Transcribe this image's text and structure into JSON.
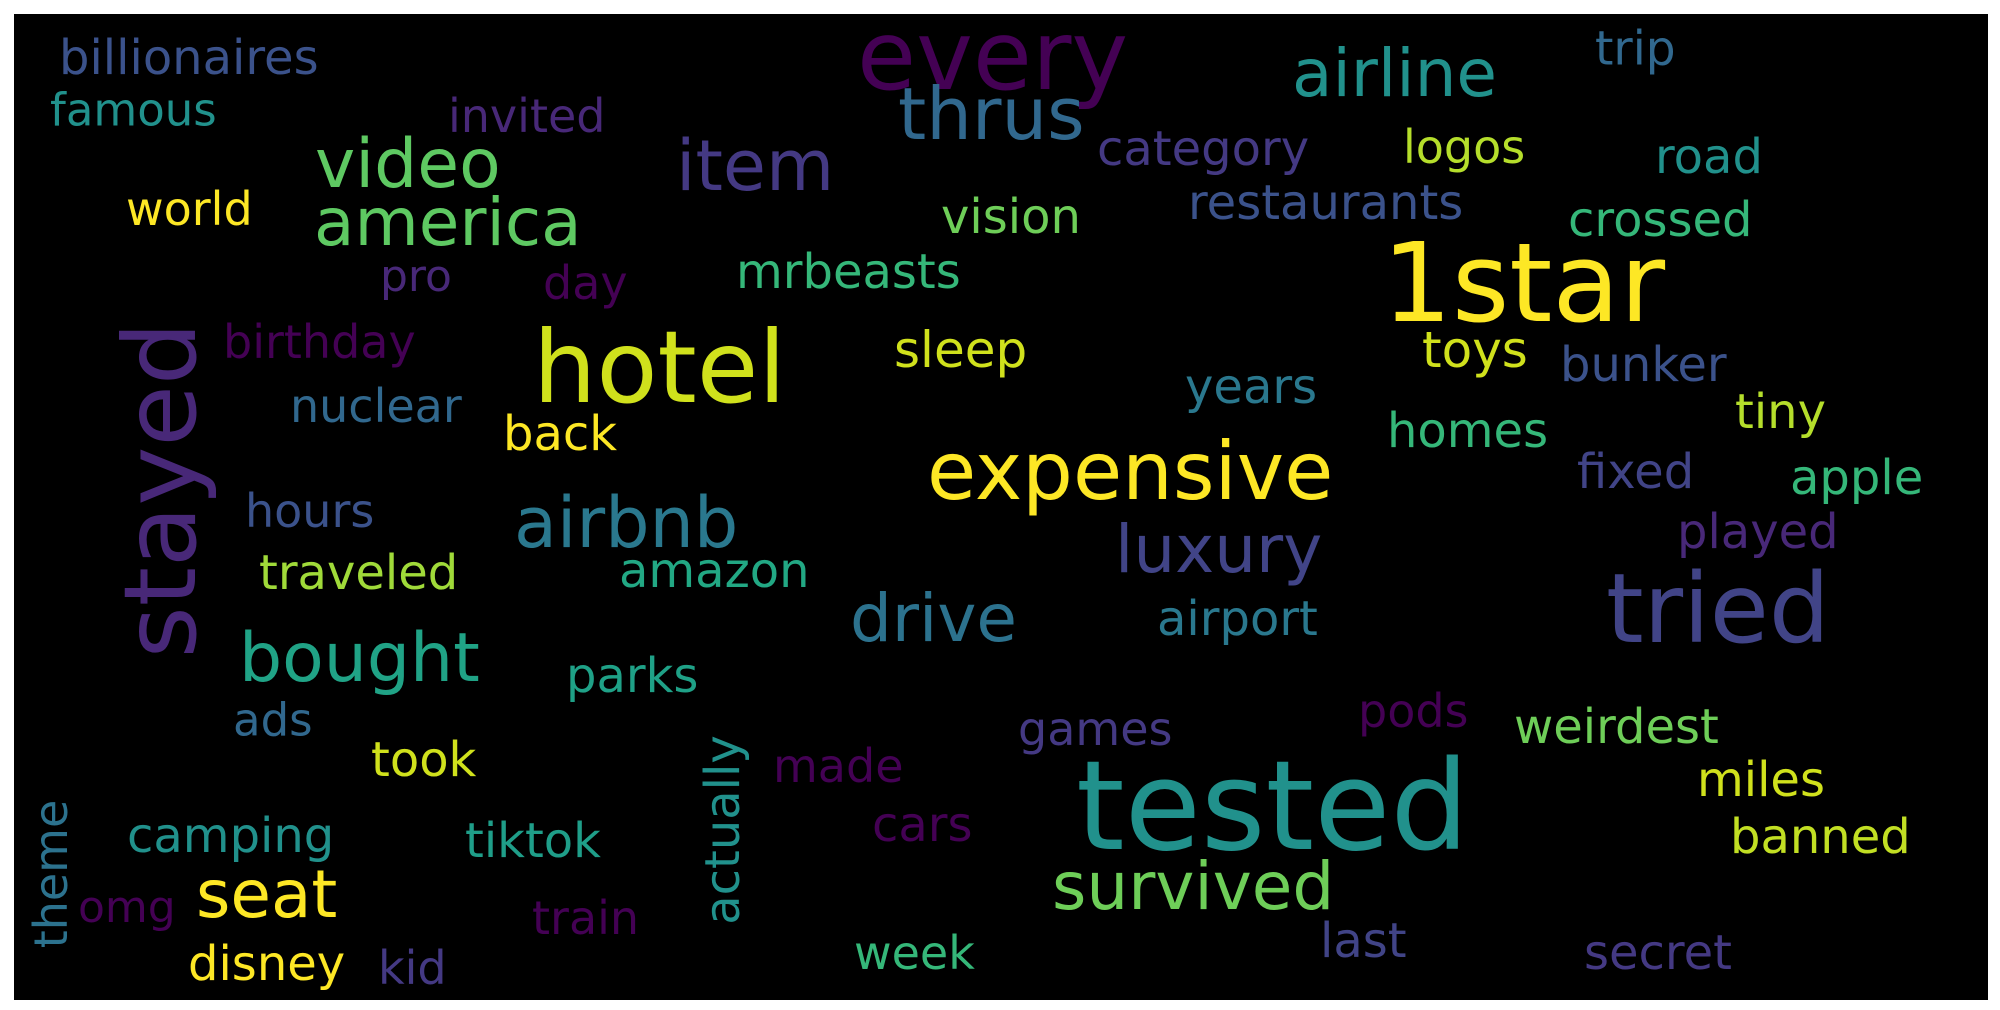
{
  "words": [
    {
      "text": "every",
      "color": "#440154"
    },
    {
      "text": "billionaires",
      "color": "#3b528b"
    },
    {
      "text": "famous",
      "color": "#21918c"
    },
    {
      "text": "invited",
      "color": "#482878"
    },
    {
      "text": "airline",
      "color": "#21918c"
    },
    {
      "text": "trip",
      "color": "#31688e"
    },
    {
      "text": "thrus",
      "color": "#31688e"
    },
    {
      "text": "video",
      "color": "#5ec962"
    },
    {
      "text": "item",
      "color": "#443983"
    },
    {
      "text": "category",
      "color": "#443983"
    },
    {
      "text": "logos",
      "color": "#b5de2b"
    },
    {
      "text": "road",
      "color": "#21918c"
    },
    {
      "text": "world",
      "color": "#fde725"
    },
    {
      "text": "america",
      "color": "#5ec962"
    },
    {
      "text": "vision",
      "color": "#6ece58"
    },
    {
      "text": "restaurants",
      "color": "#3b528b"
    },
    {
      "text": "crossed",
      "color": "#35b779"
    },
    {
      "text": "1star",
      "color": "#fde725"
    },
    {
      "text": "pro",
      "color": "#482878"
    },
    {
      "text": "day",
      "color": "#440154"
    },
    {
      "text": "mrbeasts",
      "color": "#35b779"
    },
    {
      "text": "stayed",
      "color": "#482878"
    },
    {
      "text": "birthday",
      "color": "#440154"
    },
    {
      "text": "hotel",
      "color": "#d0e11c"
    },
    {
      "text": "sleep",
      "color": "#d0e11c"
    },
    {
      "text": "toys",
      "color": "#d0e11c"
    },
    {
      "text": "bunker",
      "color": "#3b528b"
    },
    {
      "text": "nuclear",
      "color": "#31688e"
    },
    {
      "text": "years",
      "color": "#2a788e"
    },
    {
      "text": "tiny",
      "color": "#b5de2b"
    },
    {
      "text": "back",
      "color": "#fde725"
    },
    {
      "text": "homes",
      "color": "#35b779"
    },
    {
      "text": "expensive",
      "color": "#fde725"
    },
    {
      "text": "fixed",
      "color": "#414487"
    },
    {
      "text": "apple",
      "color": "#35b779"
    },
    {
      "text": "hours",
      "color": "#3b528b"
    },
    {
      "text": "airbnb",
      "color": "#2a788e"
    },
    {
      "text": "luxury",
      "color": "#414487"
    },
    {
      "text": "played",
      "color": "#482878"
    },
    {
      "text": "traveled",
      "color": "#a0da39"
    },
    {
      "text": "amazon",
      "color": "#22a884"
    },
    {
      "text": "tried",
      "color": "#414487"
    },
    {
      "text": "drive",
      "color": "#2c728e"
    },
    {
      "text": "airport",
      "color": "#2a788e"
    },
    {
      "text": "bought",
      "color": "#20a386"
    },
    {
      "text": "parks",
      "color": "#1fa187"
    },
    {
      "text": "ads",
      "color": "#31688e"
    },
    {
      "text": "pods",
      "color": "#440154"
    },
    {
      "text": "games",
      "color": "#443983"
    },
    {
      "text": "weirdest",
      "color": "#6ece58"
    },
    {
      "text": "took",
      "color": "#d0e11c"
    },
    {
      "text": "actually",
      "color": "#21918c"
    },
    {
      "text": "made",
      "color": "#440154"
    },
    {
      "text": "tested",
      "color": "#21918c"
    },
    {
      "text": "miles",
      "color": "#d0e11c"
    },
    {
      "text": "theme",
      "color": "#2c728e"
    },
    {
      "text": "camping",
      "color": "#21918c"
    },
    {
      "text": "tiktok",
      "color": "#1f9e89"
    },
    {
      "text": "cars",
      "color": "#440154"
    },
    {
      "text": "banned",
      "color": "#c2df23"
    },
    {
      "text": "survived",
      "color": "#6ece58"
    },
    {
      "text": "seat",
      "color": "#fde725"
    },
    {
      "text": "omg",
      "color": "#440154"
    },
    {
      "text": "train",
      "color": "#440154"
    },
    {
      "text": "last",
      "color": "#414487"
    },
    {
      "text": "secret",
      "color": "#443983"
    },
    {
      "text": "disney",
      "color": "#fde725"
    },
    {
      "text": "kid",
      "color": "#443983"
    },
    {
      "text": "week",
      "color": "#35b779"
    }
  ]
}
